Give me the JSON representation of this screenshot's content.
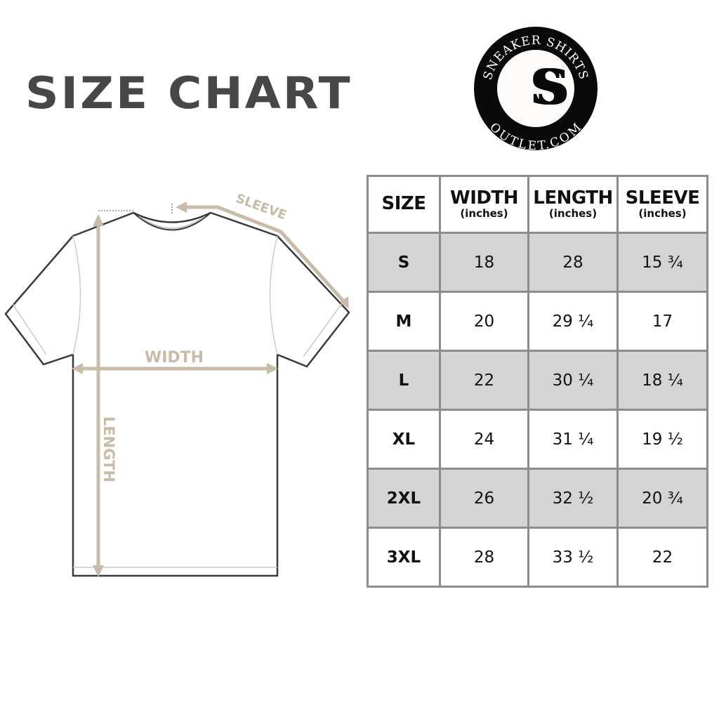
{
  "title": "SIZE CHART",
  "logo": {
    "top_text": "SNEAKER SHIRTS",
    "bottom_text": "OUTLET.COM",
    "monogram": "SS"
  },
  "diagram": {
    "sleeve_label": "SLEEVE",
    "width_label": "WIDTH",
    "length_label": "LENGTH",
    "annotation_color": "#c8bba8"
  },
  "table": {
    "headers": [
      {
        "label": "SIZE",
        "unit": ""
      },
      {
        "label": "WIDTH",
        "unit": "(inches)"
      },
      {
        "label": "LENGTH",
        "unit": "(inches)"
      },
      {
        "label": "SLEEVE",
        "unit": "(inches)"
      }
    ],
    "rows": [
      [
        "S",
        "18",
        "28",
        "15 ¾"
      ],
      [
        "M",
        "20",
        "29 ¼",
        "17"
      ],
      [
        "L",
        "22",
        "30 ¼",
        "18 ¼"
      ],
      [
        "XL",
        "24",
        "31 ¼",
        "19 ½"
      ],
      [
        "2XL",
        "26",
        "32 ½",
        "20 ¾"
      ],
      [
        "3XL",
        "28",
        "33 ½",
        "22"
      ]
    ],
    "shade_color": "#d4d4d4",
    "border_color": "#8c8c8c"
  }
}
